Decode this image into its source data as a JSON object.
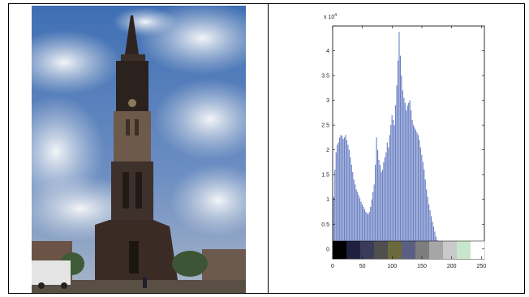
{
  "chart_data": {
    "type": "bar",
    "title": "",
    "xlabel": "",
    "ylabel": "",
    "y_scale_label": "x 10",
    "y_scale_exponent": "4",
    "xlim": [
      0,
      255
    ],
    "ylim": [
      -0.2,
      4.5
    ],
    "x_ticks": [
      0,
      50,
      100,
      150,
      200,
      250
    ],
    "y_ticks": [
      0,
      0.5,
      1,
      1.5,
      2,
      2.5,
      3,
      3.5,
      4
    ],
    "grid": false,
    "bar_color": "#6a80c4",
    "x": [
      2,
      4,
      6,
      8,
      10,
      12,
      14,
      16,
      18,
      20,
      22,
      24,
      26,
      28,
      30,
      32,
      34,
      36,
      38,
      40,
      42,
      44,
      46,
      48,
      50,
      52,
      54,
      56,
      58,
      60,
      62,
      64,
      66,
      68,
      70,
      72,
      74,
      76,
      78,
      80,
      82,
      84,
      86,
      88,
      90,
      92,
      94,
      96,
      98,
      100,
      102,
      104,
      106,
      108,
      110,
      112,
      114,
      116,
      118,
      120,
      122,
      124,
      126,
      128,
      130,
      132,
      134,
      136,
      138,
      140,
      142,
      144,
      146,
      148,
      150,
      152,
      154,
      156,
      158,
      160,
      162,
      164,
      166,
      168,
      170,
      172,
      174,
      176,
      178,
      180,
      182,
      184,
      186,
      188,
      190,
      192,
      194,
      196,
      198,
      200,
      202,
      204,
      206,
      208,
      210,
      212,
      214,
      216,
      218,
      220,
      222,
      224
    ],
    "values": [
      1.05,
      1.6,
      1.95,
      2.1,
      2.15,
      2.25,
      2.3,
      2.28,
      2.22,
      2.25,
      2.3,
      2.2,
      2.1,
      2.0,
      1.85,
      1.7,
      1.55,
      1.4,
      1.3,
      1.2,
      1.15,
      1.08,
      1.02,
      0.95,
      0.9,
      0.85,
      0.8,
      0.75,
      0.72,
      0.7,
      0.75,
      0.85,
      1.0,
      1.15,
      1.3,
      1.7,
      2.25,
      2.0,
      1.8,
      1.7,
      1.55,
      1.6,
      1.75,
      1.85,
      1.95,
      2.15,
      2.05,
      2.3,
      2.5,
      2.7,
      2.6,
      2.5,
      2.9,
      3.3,
      3.8,
      4.38,
      3.9,
      3.5,
      3.2,
      3.05,
      2.95,
      2.8,
      2.9,
      2.95,
      3.0,
      2.8,
      2.6,
      2.5,
      2.45,
      2.4,
      2.35,
      2.3,
      2.2,
      2.05,
      1.9,
      1.75,
      1.6,
      1.4,
      1.2,
      1.05,
      0.9,
      0.78,
      0.66,
      0.55,
      0.45,
      0.35,
      0.25,
      0.18,
      0.12,
      0.08,
      0.05,
      0.03,
      0.02,
      0.01,
      0.01,
      0.0,
      0.0,
      0.0,
      0.0,
      0.0,
      0.0,
      0.0,
      0.0,
      0.0,
      0.0,
      0.0,
      0.0,
      0.0,
      0.0,
      0.0,
      0.0,
      0.0
    ],
    "color_strip": [
      "#000000",
      "#1f2040",
      "#3a3c5a",
      "#4f4f4f",
      "#6b6a3c",
      "#5c5f84",
      "#7d7d7d",
      "#a6a6a6",
      "#c9c9c9",
      "#c8e6cc",
      "#ffffff"
    ]
  },
  "image": {
    "subject": "church tower photograph",
    "colors": {
      "sky": "#4a76b8",
      "cloud": "#dfe4ec",
      "tower": "#2e241f",
      "ground": "#5a4f45"
    }
  }
}
